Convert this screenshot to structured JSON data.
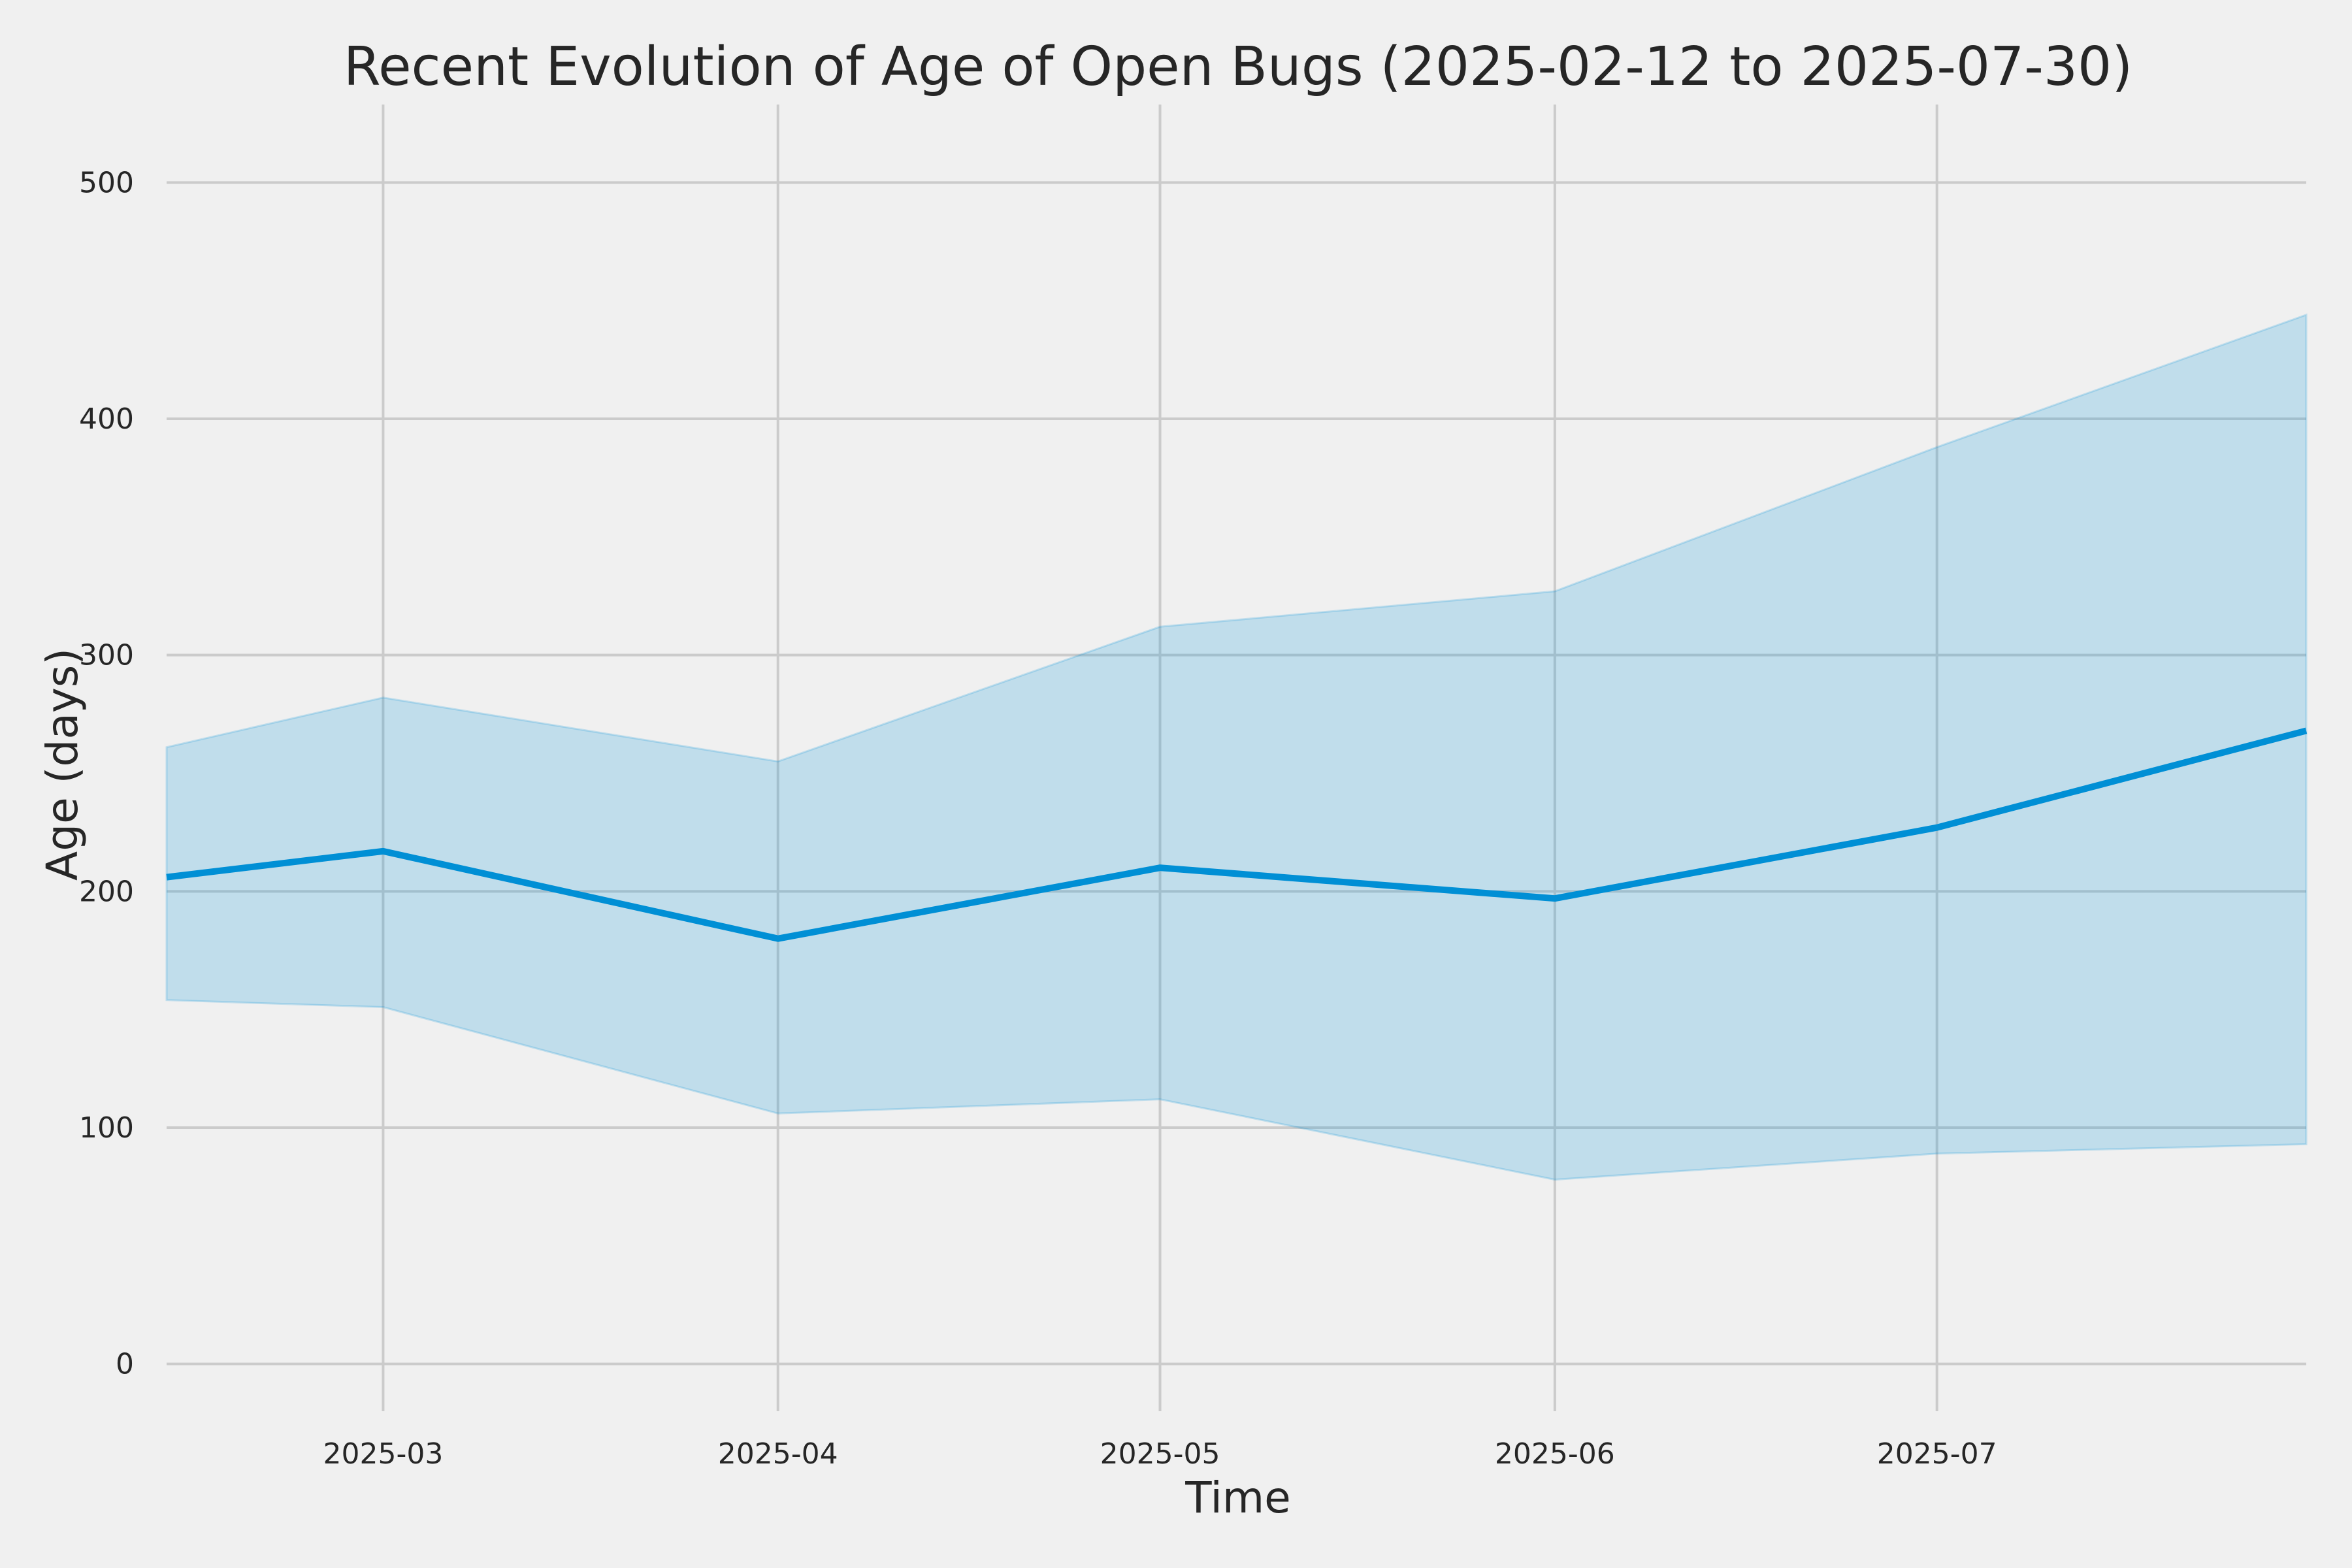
{
  "chart_data": {
    "type": "line",
    "title": "Recent Evolution of Age of Open Bugs (2025-02-12 to 2025-07-30)",
    "xlabel": "Time",
    "ylabel": "Age (days)",
    "x_range": [
      "2025-02-12",
      "2025-07-30"
    ],
    "ylim": [
      -20,
      533
    ],
    "grid": true,
    "colors": {
      "line": "#008fd5",
      "band": "#008fd5",
      "background": "#f0f0f0",
      "grid": "#cbcbcb"
    },
    "x_ticks": [
      {
        "date": "2025-03-01",
        "label": "2025-03"
      },
      {
        "date": "2025-04-01",
        "label": "2025-04"
      },
      {
        "date": "2025-05-01",
        "label": "2025-05"
      },
      {
        "date": "2025-06-01",
        "label": "2025-06"
      },
      {
        "date": "2025-07-01",
        "label": "2025-07"
      }
    ],
    "y_ticks": [
      0,
      100,
      200,
      300,
      400,
      500
    ],
    "series": [
      {
        "x": [
          "2025-02-12",
          "2025-03-01",
          "2025-04-01",
          "2025-05-01",
          "2025-06-01",
          "2025-07-01",
          "2025-07-30"
        ],
        "y": [
          206,
          217,
          180,
          210,
          197,
          227,
          268
        ],
        "band_upper": [
          261,
          282,
          255,
          312,
          327,
          388,
          444
        ],
        "band_lower": [
          154,
          151,
          106,
          112,
          78,
          89,
          93
        ]
      }
    ]
  }
}
